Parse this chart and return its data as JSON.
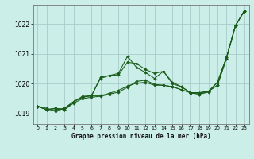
{
  "title": "Graphe pression niveau de la mer (hPa)",
  "bg_color": "#cbeee8",
  "grid_color": "#a8ccca",
  "line_color": "#1a5c1a",
  "marker_color": "#1a5c1a",
  "xlim": [
    -0.5,
    23.5
  ],
  "ylim": [
    1018.65,
    1022.65
  ],
  "yticks": [
    1019,
    1020,
    1021,
    1022
  ],
  "xticks": [
    0,
    1,
    2,
    3,
    4,
    5,
    6,
    7,
    8,
    9,
    10,
    11,
    12,
    13,
    14,
    15,
    16,
    17,
    18,
    19,
    20,
    21,
    22,
    23
  ],
  "series": [
    [
      1019.25,
      1019.13,
      1019.18,
      1019.13,
      1019.35,
      1019.5,
      1019.55,
      1019.58,
      1019.65,
      1019.72,
      1019.88,
      1020.08,
      1020.12,
      1019.98,
      1019.95,
      1019.9,
      1019.8,
      1019.7,
      1019.7,
      1019.75,
      1019.95,
      1020.85,
      1021.95,
      1022.45
    ],
    [
      1019.25,
      1019.13,
      1019.18,
      1019.13,
      1019.4,
      1019.55,
      1019.6,
      1020.22,
      1020.28,
      1020.3,
      1020.72,
      1020.68,
      1020.48,
      1020.35,
      1020.42,
      1020.0,
      1019.9,
      1019.7,
      1019.65,
      1019.72,
      1020.05,
      1020.88,
      1021.95,
      1022.45
    ],
    [
      1019.25,
      1019.18,
      1019.08,
      1019.18,
      1019.4,
      1019.58,
      1019.6,
      1020.18,
      1020.28,
      1020.35,
      1020.92,
      1020.55,
      1020.38,
      1020.18,
      1020.42,
      1020.05,
      1019.9,
      1019.7,
      1019.65,
      1019.75,
      1020.05,
      1020.88,
      1021.95,
      1022.45
    ],
    [
      1019.25,
      1019.13,
      1019.13,
      1019.18,
      1019.4,
      1019.55,
      1019.6,
      1019.6,
      1019.68,
      1019.78,
      1019.92,
      1020.02,
      1020.05,
      1019.95,
      1019.95,
      1019.9,
      1019.8,
      1019.7,
      1019.7,
      1019.75,
      1019.95,
      1020.85,
      1021.95,
      1022.45
    ]
  ]
}
